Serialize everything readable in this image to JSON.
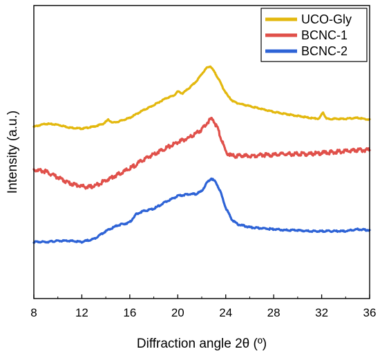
{
  "chart_data": {
    "type": "line",
    "xlabel": "Diffraction angle 2θ (º)",
    "ylabel": "Intensity (a.u.)",
    "xlim": [
      8,
      36
    ],
    "xticks": [
      8,
      12,
      16,
      20,
      24,
      28,
      32,
      36
    ],
    "y_ticks_labeled": false,
    "legend_position": "top-right",
    "series": [
      {
        "name": "UCO-Gly",
        "color": "#E3B80E",
        "x": [
          8,
          9,
          10,
          11,
          12,
          13,
          13.8,
          14.2,
          14.6,
          15,
          16,
          17,
          18,
          19,
          19.7,
          20,
          20.4,
          21,
          21.6,
          22,
          22.4,
          22.7,
          23,
          23.4,
          23.8,
          24.2,
          24.6,
          25,
          26,
          27,
          28,
          29,
          30,
          31,
          31.8,
          32.1,
          32.4,
          33,
          34,
          35,
          36
        ],
        "y": [
          0.71,
          0.74,
          0.73,
          0.7,
          0.69,
          0.71,
          0.74,
          0.78,
          0.75,
          0.76,
          0.8,
          0.87,
          0.93,
          1.0,
          1.03,
          1.07,
          1.05,
          1.11,
          1.18,
          1.25,
          1.31,
          1.33,
          1.28,
          1.2,
          1.1,
          1.02,
          0.97,
          0.95,
          0.92,
          0.89,
          0.86,
          0.84,
          0.82,
          0.8,
          0.79,
          0.86,
          0.79,
          0.79,
          0.79,
          0.8,
          0.78
        ]
      },
      {
        "name": "BCNC-1",
        "color": "#E0504A",
        "x": [
          8,
          9,
          10,
          11,
          12,
          12.5,
          13,
          14,
          15,
          16,
          17,
          18,
          19,
          20,
          21,
          22,
          22.5,
          22.9,
          23.3,
          23.7,
          24,
          24.5,
          25,
          26,
          27,
          28,
          29,
          30,
          31,
          32,
          33,
          34,
          35,
          36
        ],
        "y": [
          0.27,
          0.25,
          0.19,
          0.13,
          0.1,
          0.09,
          0.1,
          0.16,
          0.22,
          0.28,
          0.36,
          0.43,
          0.49,
          0.55,
          0.6,
          0.68,
          0.76,
          0.79,
          0.7,
          0.56,
          0.45,
          0.41,
          0.41,
          0.41,
          0.42,
          0.42,
          0.43,
          0.43,
          0.43,
          0.44,
          0.45,
          0.46,
          0.47,
          0.47
        ]
      },
      {
        "name": "BCNC-2",
        "color": "#2E63D6",
        "x": [
          8,
          9,
          10,
          11,
          12,
          13,
          14,
          15,
          16,
          16.5,
          17,
          18,
          19,
          20,
          21,
          21.5,
          22,
          22.4,
          22.8,
          23.2,
          23.6,
          24,
          24.5,
          25,
          26,
          27,
          28,
          29,
          30,
          31,
          32,
          33,
          34,
          35,
          36
        ],
        "y": [
          -0.47,
          -0.47,
          -0.46,
          -0.46,
          -0.47,
          -0.44,
          -0.36,
          -0.3,
          -0.27,
          -0.19,
          -0.16,
          -0.13,
          -0.06,
          0.0,
          0.02,
          0.02,
          0.05,
          0.13,
          0.18,
          0.14,
          0.03,
          -0.12,
          -0.24,
          -0.29,
          -0.32,
          -0.33,
          -0.34,
          -0.35,
          -0.35,
          -0.36,
          -0.36,
          -0.36,
          -0.36,
          -0.34,
          -0.35
        ]
      }
    ]
  }
}
